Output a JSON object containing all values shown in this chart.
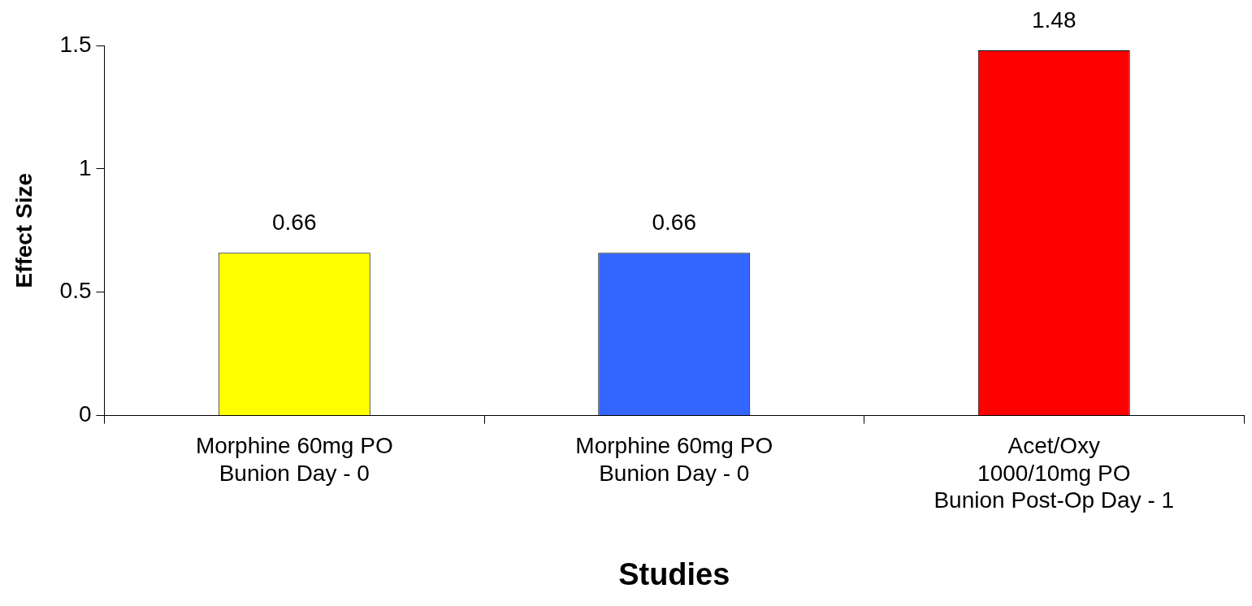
{
  "chart_data": {
    "type": "bar",
    "xlabel": "Studies",
    "ylabel": "Effect Size",
    "categories": [
      "Morphine 60mg PO\nBunion Day - 0",
      "Morphine 60mg PO\nBunion Day - 0",
      "Acet/Oxy\n1000/10mg PO\nBunion Post-Op Day - 1"
    ],
    "values": [
      0.66,
      0.66,
      1.48
    ],
    "colors": [
      "#ffff00",
      "#3366ff",
      "#ff0000"
    ],
    "ylim": [
      0,
      1.5
    ],
    "yticks": [
      0,
      0.5,
      1,
      1.5
    ],
    "data_labels": true,
    "grid": false,
    "legend": false
  }
}
